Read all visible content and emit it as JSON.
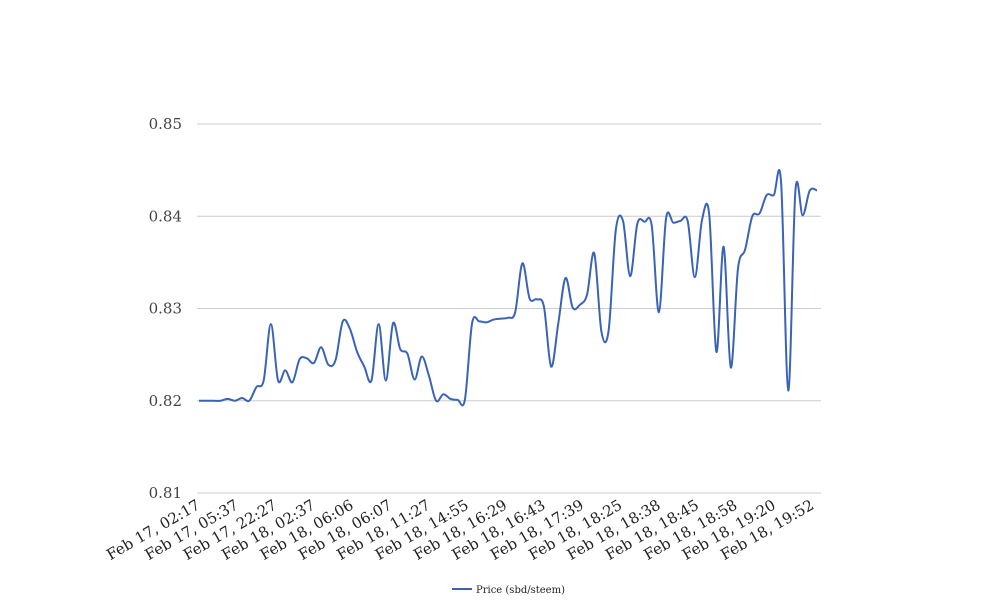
{
  "chart_data": {
    "type": "line",
    "title": "",
    "xlabel": "",
    "ylabel": "",
    "ylim": [
      0.81,
      0.85
    ],
    "y_ticks": [
      "0.81",
      "0.82",
      "0.83",
      "0.84",
      "0.85"
    ],
    "grid": true,
    "legend_placement": "bottom",
    "x_tick_labels": [
      "Feb 17, 02:17",
      "Feb 17, 05:37",
      "Feb 17, 22:27",
      "Feb 18, 02:37",
      "Feb 18, 06:06",
      "Feb 18, 06:07",
      "Feb 18, 11:27",
      "Feb 18, 14:55",
      "Feb 18, 16:29",
      "Feb 18, 16:43",
      "Feb 18, 17:39",
      "Feb 18, 18:25",
      "Feb 18, 18:38",
      "Feb 18, 18:45",
      "Feb 18, 18:58",
      "Feb 18, 19:20",
      "Feb 18, 19:52"
    ],
    "series": [
      {
        "name": "Price (sbd/steem)",
        "color": "#3a63b8",
        "values": [
          0.82,
          0.82,
          0.82,
          0.82,
          0.8202,
          0.82,
          0.8203,
          0.82,
          0.8215,
          0.8222,
          0.8283,
          0.8222,
          0.8233,
          0.822,
          0.8245,
          0.8246,
          0.8241,
          0.8258,
          0.8239,
          0.8244,
          0.8286,
          0.8278,
          0.8253,
          0.8237,
          0.8222,
          0.8283,
          0.8222,
          0.8284,
          0.8256,
          0.8251,
          0.8223,
          0.8248,
          0.8227,
          0.82,
          0.8207,
          0.8202,
          0.8201,
          0.8201,
          0.8284,
          0.8286,
          0.8285,
          0.8288,
          0.8289,
          0.829,
          0.8296,
          0.8349,
          0.8311,
          0.831,
          0.8302,
          0.8237,
          0.8284,
          0.8333,
          0.8301,
          0.8304,
          0.8315,
          0.836,
          0.8275,
          0.8276,
          0.8385,
          0.8395,
          0.8335,
          0.8392,
          0.8394,
          0.839,
          0.8296,
          0.8398,
          0.8393,
          0.8395,
          0.8395,
          0.8334,
          0.8396,
          0.8402,
          0.8253,
          0.8367,
          0.8236,
          0.8343,
          0.8364,
          0.84,
          0.8403,
          0.8423,
          0.8423,
          0.8437,
          0.8211,
          0.8428,
          0.8401,
          0.8428,
          0.8428
        ]
      }
    ]
  }
}
